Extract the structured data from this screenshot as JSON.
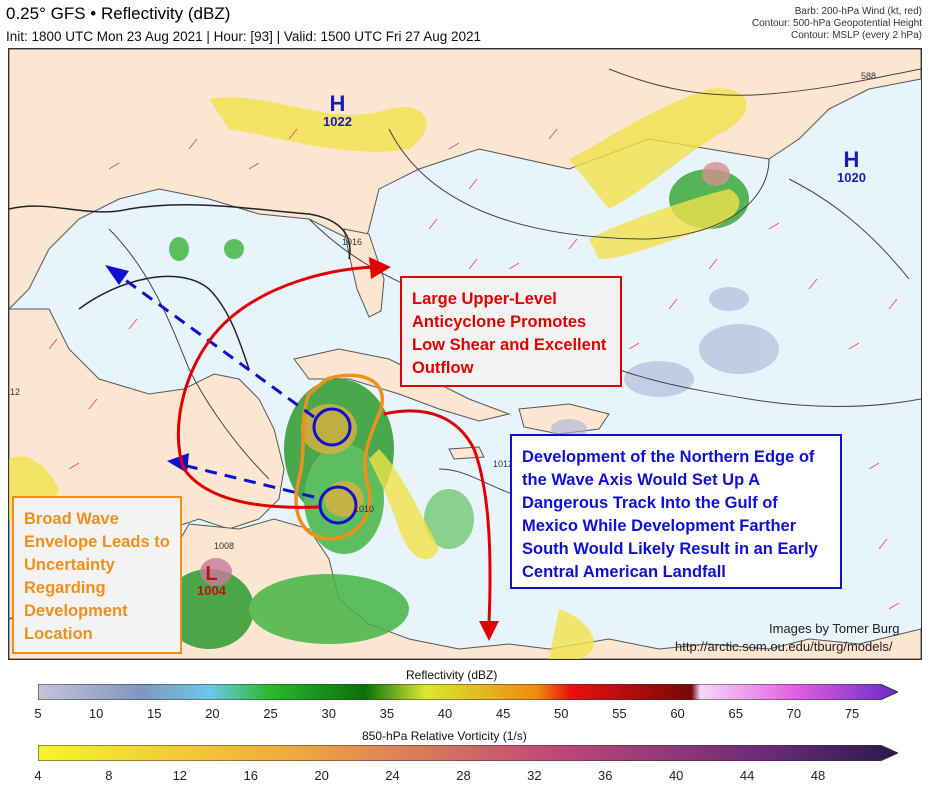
{
  "header": {
    "title": "0.25° GFS • Reflectivity (dBZ)",
    "subtitle": "Init: 1800 UTC Mon 23 Aug 2021 | Hour: [93] | Valid: 1500 UTC Fri 27 Aug 2021"
  },
  "fields_legend": {
    "line1": "Barb: 200-hPa Wind (kt, red)",
    "line2": "Contour: 500-hPa Geopotential Height",
    "line3": "Contour: MSLP (every 2 hPa)"
  },
  "pressure_centers": [
    {
      "type": "H",
      "value": "1022"
    },
    {
      "type": "H",
      "value": "1020"
    },
    {
      "type": "L",
      "value": "1004"
    }
  ],
  "contour_labels": {
    "c588": "588",
    "c1016": "1016",
    "c1012": "1012",
    "c1008": "1008",
    "c1010": "1010",
    "c12": "12"
  },
  "callouts": {
    "red": "Large Upper-Level Anticyclone Promotes Low Shear and Excellent Outflow",
    "blue": "Development of the Northern Edge of the Wave Axis Would Set Up A Dangerous Track Into the Gulf of Mexico While Development Farther South Would Likely Result in an Early Central American Landfall",
    "orange": "Broad Wave Envelope Leads to Uncertainty Regarding Development Location"
  },
  "credit": {
    "author": "Images by Tomer Burg",
    "url": "http://arctic.som.ou.edu/tburg/models/"
  },
  "colorbars": {
    "reflectivity": {
      "title": "Reflectivity (dBZ)",
      "ticks": [
        "5",
        "10",
        "15",
        "20",
        "25",
        "30",
        "35",
        "40",
        "45",
        "50",
        "55",
        "60",
        "65",
        "70",
        "75"
      ]
    },
    "vorticity": {
      "title": "850-hPa Relative Vorticity (1/s)",
      "ticks": [
        "4",
        "8",
        "12",
        "16",
        "20",
        "24",
        "28",
        "32",
        "36",
        "40",
        "44",
        "48"
      ]
    }
  },
  "colors": {
    "annotation_red": "#e00000",
    "annotation_blue": "#1010d0",
    "annotation_orange": "#f0901a",
    "land": "#fbe6d2",
    "water": "#e8f4fb"
  }
}
